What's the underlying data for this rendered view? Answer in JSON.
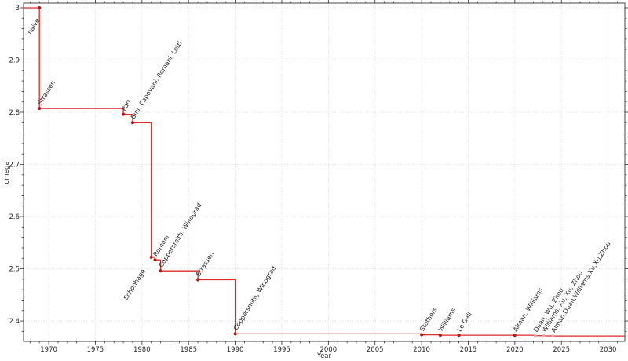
{
  "chart_data": {
    "type": "line",
    "step_mode": "post",
    "title": "",
    "xlabel": "Year",
    "ylabel": "omega",
    "xlim": [
      1967.3,
      2031.8
    ],
    "ylim": [
      2.361,
      3.009
    ],
    "grid": "dotted-major",
    "legend": "none",
    "x_ticks": [
      {
        "v": 1970,
        "label": "1970"
      },
      {
        "v": 1975,
        "label": "1975"
      },
      {
        "v": 1980,
        "label": "1980"
      },
      {
        "v": 1985,
        "label": "1985"
      },
      {
        "v": 1990,
        "label": "1990"
      },
      {
        "v": 1995,
        "label": "1995"
      },
      {
        "v": 2000,
        "label": "2000"
      },
      {
        "v": 2005,
        "label": "2005"
      },
      {
        "v": 2010,
        "label": "2010"
      },
      {
        "v": 2015,
        "label": "2015"
      },
      {
        "v": 2020,
        "label": "2020"
      },
      {
        "v": 2025,
        "label": "2025"
      },
      {
        "v": 2030,
        "label": "2030"
      }
    ],
    "y_ticks": [
      {
        "v": 2.4,
        "label": "2.4"
      },
      {
        "v": 2.5,
        "label": "2.5"
      },
      {
        "v": 2.6,
        "label": "2.6"
      },
      {
        "v": 2.7,
        "label": "2.7"
      },
      {
        "v": 2.8,
        "label": "2.8"
      },
      {
        "v": 2.9,
        "label": "2.9"
      },
      {
        "v": 3.0,
        "label": "3"
      }
    ],
    "x_minor_step": 1,
    "y_minor_step": 0.02,
    "label_rotation_deg": 58,
    "colors": {
      "line": "#db2b2b",
      "marker": "#bf1111",
      "faded_marker": "#f0a6a6",
      "label": "#262626",
      "faded_label": "#aaaaaa",
      "spine": "#444444",
      "tick": "#333333",
      "grid": "#d0d0d0"
    },
    "points": [
      {
        "year": 1969,
        "omega": 3.0,
        "label": "naive",
        "faded": false,
        "label_offset": [
          -11,
          34
        ]
      },
      {
        "year": 1969,
        "omega": 2.8074,
        "label": "Strassen",
        "faded": false
      },
      {
        "year": 1978,
        "omega": 2.796,
        "label": "Pan",
        "faded": false
      },
      {
        "year": 1979,
        "omega": 2.78,
        "label": "Bini, Capovani, Romani, Lotti",
        "faded": false
      },
      {
        "year": 1981,
        "omega": 2.522,
        "label": "Schönhage",
        "faded": false,
        "label_offset": [
          -31,
          55
        ]
      },
      {
        "year": 1981.4,
        "omega": 2.517,
        "label": "Romani",
        "faded": false
      },
      {
        "year": 1982,
        "omega": 2.496,
        "label": "Coppersmith, Winograd",
        "faded": false
      },
      {
        "year": 1986,
        "omega": 2.479,
        "label": "Strassen",
        "faded": false
      },
      {
        "year": 1990,
        "omega": 2.3755,
        "label": "Coppersmith, Winograd",
        "faded": false
      },
      {
        "year": 2010,
        "omega": 2.3737,
        "label": "Stothers",
        "faded": false
      },
      {
        "year": 2012,
        "omega": 2.3729,
        "label": "Williams",
        "faded": false
      },
      {
        "year": 2014,
        "omega": 2.3728639,
        "label": "Le Gall",
        "faded": false
      },
      {
        "year": 2020,
        "omega": 2.3728596,
        "label": "Alman, Williams",
        "faded": false
      },
      {
        "year": 2022.2,
        "omega": 2.371866,
        "label": "Duan, Wu, Zhou",
        "faded": true
      },
      {
        "year": 2023.1,
        "omega": 2.371552,
        "label": "Williams, Xu, Xu, Zhou",
        "faded": true
      },
      {
        "year": 2024.1,
        "omega": 2.371339,
        "label": "Alman,Duan,Williams,Xu,Xu,Zhou",
        "faded": true
      }
    ]
  }
}
